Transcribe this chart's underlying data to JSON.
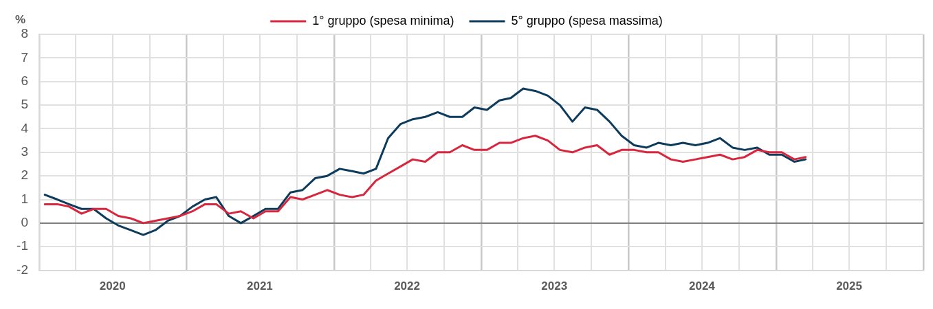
{
  "chart_data": {
    "type": "line",
    "ylabel": "%",
    "x": [
      "2020-01-15",
      "2020-02-15",
      "2020-03-15",
      "2020-04-15",
      "2020-05-15",
      "2020-06-15",
      "2020-07-15",
      "2020-08-15",
      "2020-09-15",
      "2020-10-15",
      "2020-11-15",
      "2020-12-15",
      "2021-01-15",
      "2021-02-15",
      "2021-03-15",
      "2021-04-15",
      "2021-05-15",
      "2021-06-15",
      "2021-07-15",
      "2021-08-15",
      "2021-09-15",
      "2021-10-15",
      "2021-11-15",
      "2021-12-15",
      "2022-01-15",
      "2022-02-15",
      "2022-03-15",
      "2022-04-15",
      "2022-05-15",
      "2022-06-15",
      "2022-07-15",
      "2022-08-15",
      "2022-09-15",
      "2022-10-15",
      "2022-11-15",
      "2022-12-15",
      "2023-01-15",
      "2023-02-15",
      "2023-03-15",
      "2023-04-15",
      "2023-05-15",
      "2023-06-15",
      "2023-07-15",
      "2023-08-15",
      "2023-09-15",
      "2023-10-15",
      "2023-11-15",
      "2023-12-15",
      "2024-01-15",
      "2024-02-15",
      "2024-03-15",
      "2024-04-15",
      "2024-05-15",
      "2024-06-15",
      "2024-07-15",
      "2024-08-15",
      "2024-09-15",
      "2024-10-15",
      "2024-11-15",
      "2024-12-15",
      "2025-01-15",
      "2025-02-15",
      "2025-03-15"
    ],
    "series": [
      {
        "name": "1° gruppo (spesa minima)",
        "color": "#d7263d",
        "values": [
          0.8,
          0.8,
          0.7,
          0.4,
          0.6,
          0.6,
          0.3,
          0.2,
          0.0,
          0.1,
          0.2,
          0.3,
          0.5,
          0.8,
          0.8,
          0.4,
          0.5,
          0.2,
          0.5,
          0.5,
          1.1,
          1.0,
          1.2,
          1.4,
          1.2,
          1.1,
          1.2,
          1.8,
          2.1,
          2.4,
          2.7,
          2.6,
          3.0,
          3.0,
          3.3,
          3.1,
          3.1,
          3.4,
          3.4,
          3.6,
          3.7,
          3.5,
          3.1,
          3.0,
          3.2,
          3.3,
          2.9,
          3.1,
          3.1,
          3.0,
          3.0,
          2.7,
          2.6,
          2.7,
          2.8,
          2.9,
          2.7,
          2.8,
          3.1,
          3.0,
          3.0,
          2.7,
          2.8
        ]
      },
      {
        "name": "5° gruppo (spesa massima)",
        "color": "#0d3b5c",
        "values": [
          1.2,
          1.0,
          0.8,
          0.6,
          0.6,
          0.2,
          -0.1,
          -0.3,
          -0.5,
          -0.3,
          0.1,
          0.3,
          0.7,
          1.0,
          1.1,
          0.3,
          0.0,
          0.3,
          0.6,
          0.6,
          1.3,
          1.4,
          1.9,
          2.0,
          2.3,
          2.2,
          2.1,
          2.3,
          3.6,
          4.2,
          4.4,
          4.5,
          4.7,
          4.5,
          4.5,
          4.9,
          4.8,
          5.2,
          5.3,
          5.7,
          5.6,
          5.4,
          5.0,
          4.3,
          4.9,
          4.8,
          4.3,
          3.7,
          3.3,
          3.2,
          3.4,
          3.3,
          3.4,
          3.3,
          3.4,
          3.6,
          3.2,
          3.1,
          3.2,
          2.9,
          2.9,
          2.6,
          2.7
        ]
      }
    ],
    "xlim": [
      "2020-01-01",
      "2026-01-01"
    ],
    "xticks": [
      {
        "value": "2020-01-01",
        "label": null
      },
      {
        "value": "2020-04-01",
        "label": null
      },
      {
        "value": "2020-07-01",
        "label": "2020"
      },
      {
        "value": "2020-10-01",
        "label": null
      },
      {
        "value": "2021-01-01",
        "label": null
      },
      {
        "value": "2021-04-01",
        "label": null
      },
      {
        "value": "2021-07-01",
        "label": "2021"
      },
      {
        "value": "2021-10-01",
        "label": null
      },
      {
        "value": "2022-01-01",
        "label": null
      },
      {
        "value": "2022-04-01",
        "label": null
      },
      {
        "value": "2022-07-01",
        "label": "2022"
      },
      {
        "value": "2022-10-01",
        "label": null
      },
      {
        "value": "2023-01-01",
        "label": null
      },
      {
        "value": "2023-04-01",
        "label": null
      },
      {
        "value": "2023-07-01",
        "label": "2023"
      },
      {
        "value": "2023-10-01",
        "label": null
      },
      {
        "value": "2024-01-01",
        "label": null
      },
      {
        "value": "2024-04-01",
        "label": null
      },
      {
        "value": "2024-07-01",
        "label": "2024"
      },
      {
        "value": "2024-10-01",
        "label": null
      },
      {
        "value": "2025-01-01",
        "label": null
      },
      {
        "value": "2025-04-01",
        "label": null
      },
      {
        "value": "2025-07-01",
        "label": "2025"
      },
      {
        "value": "2025-10-01",
        "label": null
      },
      {
        "value": "2026-01-01",
        "label": null
      }
    ],
    "ylim": [
      -2,
      8
    ],
    "yticks": [
      -2,
      -1,
      0,
      1,
      2,
      3,
      4,
      5,
      6,
      7,
      8
    ],
    "grid": true,
    "legend": "top",
    "line_style": "solid"
  }
}
